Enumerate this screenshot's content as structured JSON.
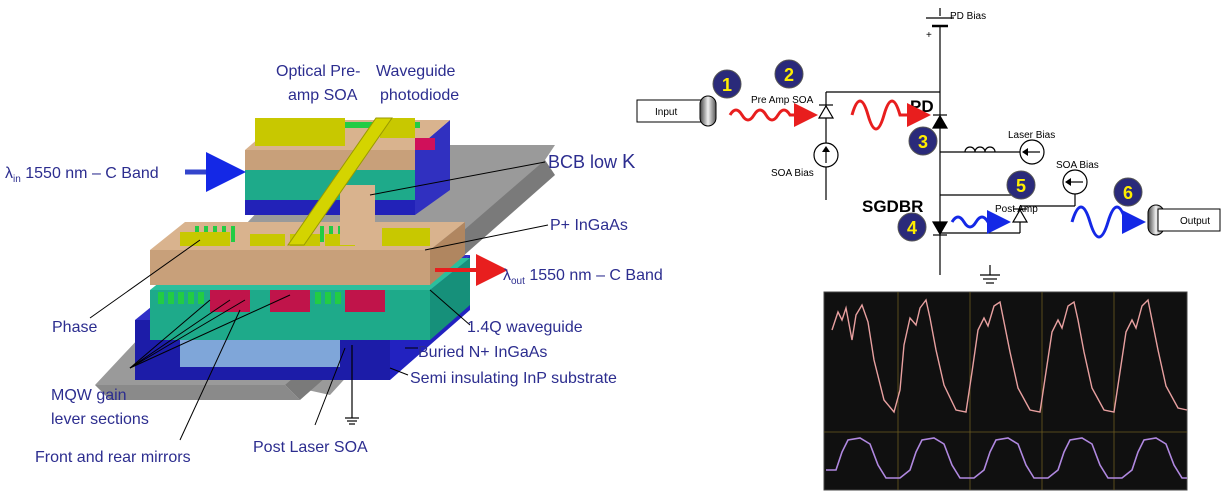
{
  "device": {
    "labels": {
      "optical_preamp_line1": "Optical Pre-",
      "optical_preamp_line2": "amp SOA",
      "waveguide_pd_line1": "Waveguide",
      "waveguide_pd_line2": "photodiode",
      "lambda_in_symbol": "λ",
      "lambda_in_sub": "in",
      "lambda_in_rest": " 1550 nm – C Band",
      "bcb": "BCB low ",
      "bcb_k": "K",
      "p_ingaas": "P+ InGaAs",
      "lambda_out_symbol": "λ",
      "lambda_out_sub": "out",
      "lambda_out_rest": " 1550 nm – C Band",
      "phase": "Phase",
      "waveguide14": "1.4Q waveguide",
      "buried_n": "Buried N+ InGaAs",
      "semi_ins": "Semi insulating InP substrate",
      "mqw_line1": "MQW gain",
      "mqw_line2": "lever sections",
      "mirrors": "Front and rear mirrors",
      "post_laser_soa": "Post Laser SOA"
    }
  },
  "circuit": {
    "labels": {
      "pd_bias": "PD Bias",
      "plus": "+",
      "input": "Input",
      "pre_amp_soa": "Pre Amp SOA",
      "pd": "PD",
      "soa_bias_left": "SOA Bias",
      "laser_bias": "Laser Bias",
      "soa_bias_right": "SOA Bias",
      "sgdbr": "SGDBR",
      "post_amp": "Post Amp",
      "output": "Output"
    },
    "steps": [
      "1",
      "2",
      "3",
      "4",
      "5",
      "6"
    ]
  },
  "colors": {
    "label_blue": "#2c2d8f",
    "signal_red": "#e81e1e",
    "signal_blue": "#1428e6",
    "step_fill": "#2a2a7a",
    "step_text": "#ffee00",
    "scope_bg": "#101010",
    "trace_top": "#e8a0a0",
    "trace_bottom": "#b088e0"
  }
}
